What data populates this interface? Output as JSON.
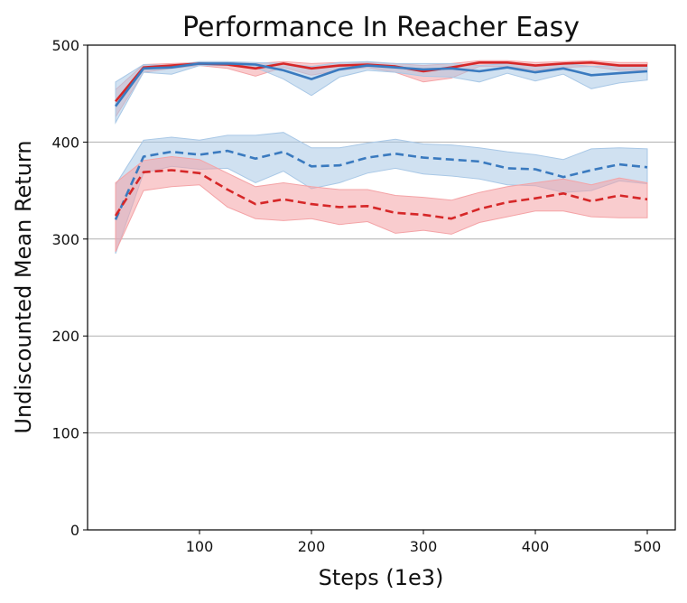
{
  "chart_data": {
    "type": "line",
    "title": "Performance In Reacher Easy",
    "xlabel": "Steps (1e3)",
    "ylabel": "Undiscounted Mean Return",
    "xlim": [
      0,
      525
    ],
    "ylim": [
      0,
      500
    ],
    "xticks": [
      100,
      200,
      300,
      400,
      500
    ],
    "yticks": [
      0,
      100,
      200,
      300,
      400,
      500
    ],
    "grid": "horizontal",
    "legend": "none",
    "x": [
      25,
      50,
      75,
      100,
      125,
      150,
      175,
      200,
      225,
      250,
      275,
      300,
      325,
      350,
      375,
      400,
      425,
      450,
      475,
      500
    ],
    "series": [
      {
        "style": "solid",
        "color": "#d62728",
        "band_color": "#f4a3a6",
        "values": [
          442,
          477,
          479,
          481,
          480,
          476,
          481,
          476,
          479,
          480,
          478,
          473,
          477,
          482,
          482,
          479,
          481,
          482,
          479,
          479
        ],
        "upper": [
          454,
          480,
          481,
          482,
          482,
          481,
          483,
          481,
          482,
          482,
          481,
          479,
          481,
          484,
          484,
          482,
          483,
          484,
          482,
          482
        ],
        "lower": [
          426,
          472,
          476,
          479,
          476,
          468,
          477,
          469,
          474,
          477,
          472,
          462,
          466,
          478,
          478,
          474,
          477,
          478,
          474,
          474
        ]
      },
      {
        "style": "solid",
        "color": "#3a7abf",
        "band_color": "#a9c8e6",
        "values": [
          437,
          476,
          477,
          481,
          481,
          480,
          474,
          465,
          475,
          479,
          477,
          475,
          476,
          473,
          477,
          472,
          476,
          469,
          471,
          473
        ],
        "upper": [
          462,
          480,
          479,
          483,
          483,
          482,
          481,
          478,
          482,
          483,
          481,
          481,
          481,
          479,
          481,
          479,
          481,
          478,
          479,
          479
        ],
        "lower": [
          420,
          472,
          470,
          479,
          479,
          477,
          465,
          448,
          467,
          474,
          472,
          468,
          467,
          462,
          471,
          463,
          470,
          455,
          461,
          464
        ]
      },
      {
        "style": "dashed",
        "color": "#3a7abf",
        "band_color": "#a9c8e6",
        "values": [
          320,
          385,
          390,
          387,
          391,
          383,
          390,
          375,
          376,
          384,
          388,
          384,
          382,
          380,
          373,
          372,
          364,
          371,
          377,
          374
        ],
        "upper": [
          356,
          402,
          405,
          402,
          407,
          407,
          410,
          394,
          394,
          399,
          403,
          398,
          397,
          394,
          390,
          387,
          382,
          393,
          394,
          393
        ],
        "lower": [
          285,
          368,
          375,
          372,
          373,
          358,
          370,
          352,
          358,
          368,
          373,
          367,
          365,
          362,
          356,
          355,
          348,
          350,
          360,
          357
        ]
      },
      {
        "style": "dashed",
        "color": "#d62728",
        "band_color": "#f4a3a6",
        "values": [
          324,
          369,
          371,
          368,
          351,
          336,
          341,
          336,
          333,
          334,
          327,
          325,
          321,
          331,
          338,
          342,
          347,
          339,
          345,
          341
        ],
        "upper": [
          358,
          381,
          385,
          382,
          368,
          354,
          358,
          354,
          351,
          351,
          345,
          343,
          340,
          348,
          354,
          358,
          362,
          356,
          363,
          358
        ],
        "lower": [
          287,
          350,
          354,
          356,
          333,
          321,
          319,
          321,
          315,
          318,
          306,
          309,
          305,
          317,
          323,
          329,
          329,
          323,
          322,
          322
        ]
      }
    ]
  }
}
